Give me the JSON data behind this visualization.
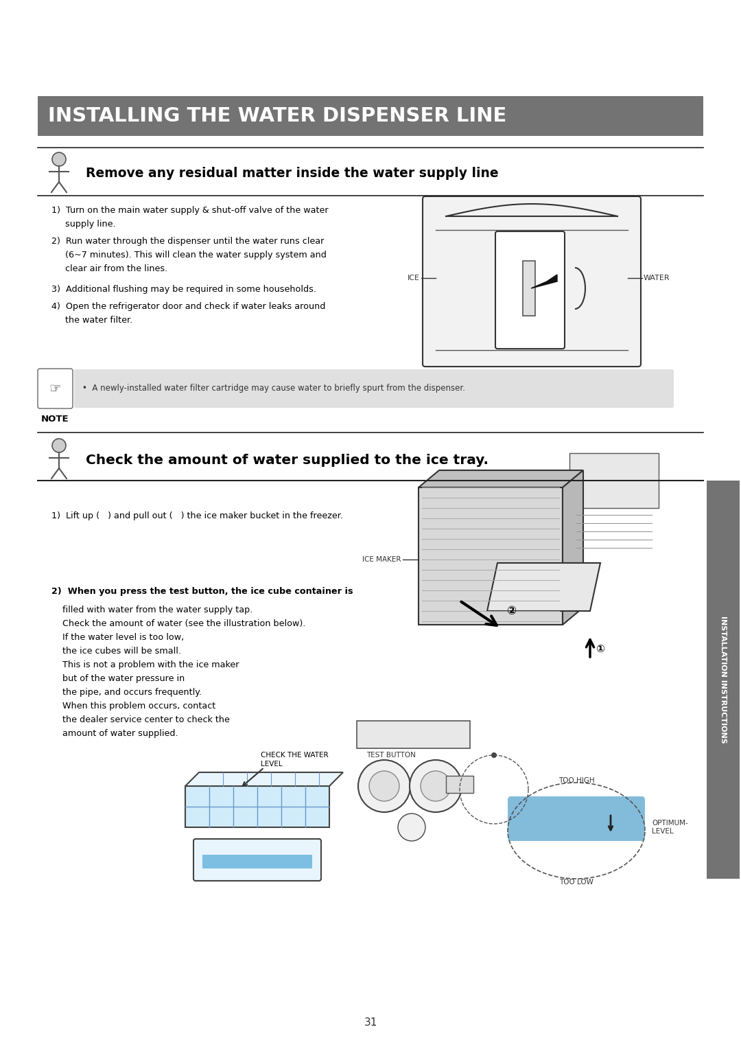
{
  "page_bg": "#ffffff",
  "title_bg": "#737373",
  "title_text": "INSTALLING THE WATER DISPENSER LINE",
  "title_color": "#ffffff",
  "title_fontsize": 22,
  "section1_header": "Remove any residual matter inside the water supply line",
  "section1_step1a": "1)  Turn on the main water supply & shut-off valve of the water",
  "section1_step1b": "     supply line.",
  "section1_step2a": "2)  Run water through the dispenser until the water runs clear",
  "section1_step2b": "     (6~7 minutes). This will clean the water supply system and",
  "section1_step2c": "     clear air from the lines.",
  "section1_step3": "3)  Additional flushing may be required in some households.",
  "section1_step4a": "4)  Open the refrigerator door and check if water leaks around",
  "section1_step4b": "     the water filter.",
  "note_text": "•  A newly-installed water filter cartridge may cause water to briefly spurt from the dispenser.",
  "note_label": "NOTE",
  "section2_header": "Check the amount of water supplied to the ice tray.",
  "section2_step1": "1)  Lift up (   ) and pull out (   ) the ice maker bucket in the freezer.",
  "section2_step2_bold": "2)  When you press the test button, the ice cube container is",
  "section2_step2_line1": "    filled with water from the water supply tap.",
  "section2_step2_line2": "    Check the amount of water (see the illustration below).",
  "section2_step2_line3": "    If the water level is too low,",
  "section2_step2_line4": "    the ice cubes will be small.",
  "section2_step2_line5": "    This is not a problem with the ice maker",
  "section2_step2_line6": "    but of the water pressure in",
  "section2_step2_line7": "    the pipe, and occurs frequently.",
  "section2_step2_line8": "    When this problem occurs, contact",
  "section2_step2_line9": "    the dealer service center to check the",
  "section2_step2_line10": "    amount of water supplied.",
  "sidebar_text": "INSTALLATION INSTRUCTIONS",
  "sidebar_bg": "#737373",
  "page_number": "31",
  "ice_label": "ICE",
  "water_label": "WATER",
  "ice_maker_label": "ICE MAKER",
  "check_water_label": "CHECK THE WATER\nLEVEL",
  "test_button_label": "TEST BUTTON",
  "too_high_label": "TOO HIGH",
  "optimum_label": "OPTIMUM-\nLEVEL",
  "too_low_label": "TOO LOW",
  "note_bg": "#e0e0e0",
  "sec2_header_bg": "#f0eedc"
}
